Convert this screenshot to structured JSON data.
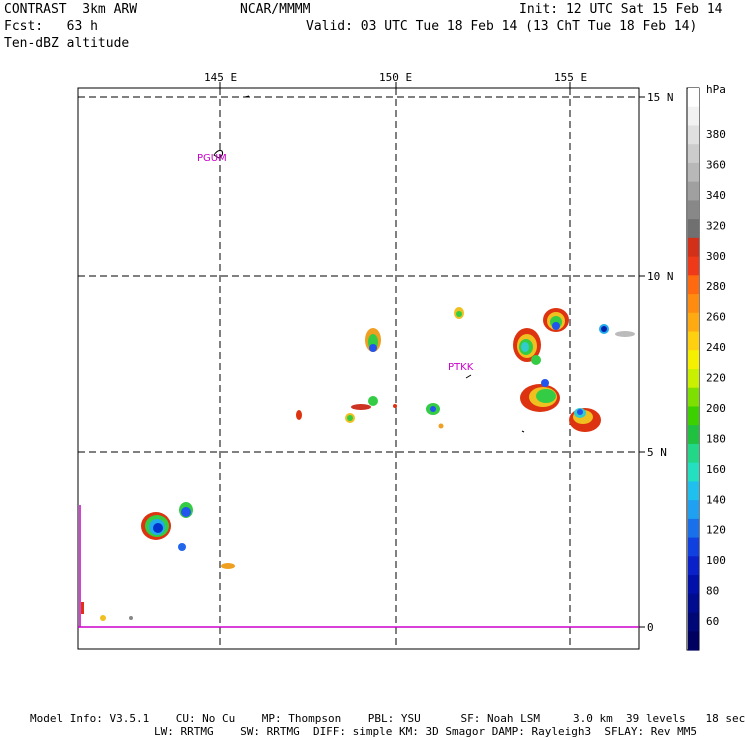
{
  "header": {
    "model": "CONTRAST  3km ARW",
    "org": "NCAR/MMMM",
    "init": "Init: 12 UTC Sat 15 Feb 14",
    "fcst": "Fcst:   63 h",
    "valid": "Valid: 03 UTC Tue 18 Feb 14 (13 ChT Tue 18 Feb 14)",
    "field": "Ten-dBZ altitude"
  },
  "map": {
    "lon_labels": [
      "145 E",
      "150 E",
      "155 E"
    ],
    "lat_labels": [
      "15 N",
      "10 N",
      "5 N",
      "0"
    ],
    "stations": [
      "PGUM",
      "PTKK"
    ],
    "line_color": "#cc00cc"
  },
  "colorbar": {
    "unit": "hPa",
    "ticks": [
      "380",
      "360",
      "340",
      "320",
      "300",
      "280",
      "260",
      "240",
      "220",
      "200",
      "180",
      "160",
      "140",
      "120",
      "100",
      "80",
      "60"
    ]
  },
  "footer": {
    "line1": "Model Info: V3.5.1    CU: No Cu    MP: Thompson    PBL: YSU      SF: Noah LSM     3.0 km  39 levels   18 sec",
    "line2": "LW: RRTMG    SW: RRTMG  DIFF: simple KM: 3D Smagor DAMP: Rayleigh3  SFLAY: Rev MM5"
  }
}
